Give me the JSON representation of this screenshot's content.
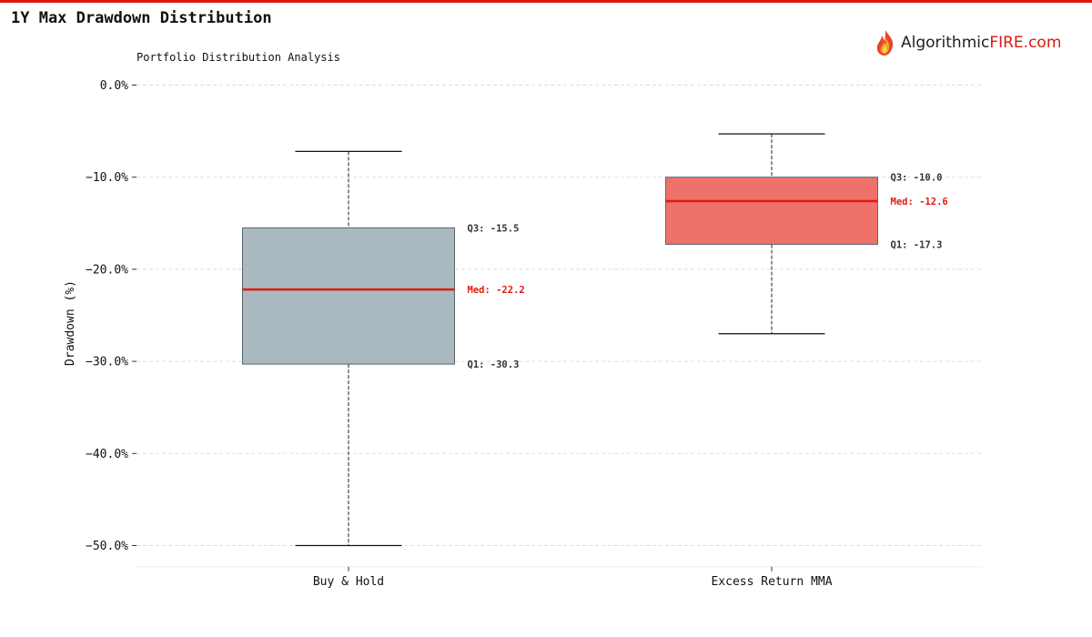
{
  "header": {
    "title": "1Y Max Drawdown Distribution",
    "logo_text_main": "Algorithmic",
    "logo_text_accent": "FIRE.com"
  },
  "colors": {
    "accent": "#d9190f",
    "buy_hold_box": "#aab8bf",
    "mma_box": "#ee716a",
    "median": "#e01b10",
    "grid": "#dddddd"
  },
  "chart_data": {
    "type": "box",
    "title": "Portfolio Distribution Analysis",
    "ylabel": "Drawdown (%)",
    "xlabel": "",
    "ylim": [
      -52.3,
      0
    ],
    "yticks": [
      "0.0%",
      "−10.0%",
      "−20.0%",
      "−30.0%",
      "−40.0%",
      "−50.0%"
    ],
    "ytick_values": [
      0,
      -10,
      -20,
      -30,
      -40,
      -50
    ],
    "grid": true,
    "categories": [
      "Buy & Hold",
      "Excess Return MMA"
    ],
    "boxes": [
      {
        "category": "Buy & Hold",
        "whisker_high": -7.2,
        "q3": -15.5,
        "median": -22.2,
        "q1": -30.3,
        "whisker_low": -50.0,
        "color": "#aab8bf",
        "labels": {
          "q3": "Q3: -15.5",
          "median": "Med: -22.2",
          "q1": "Q1: -30.3"
        }
      },
      {
        "category": "Excess Return MMA",
        "whisker_high": -5.3,
        "q3": -10.0,
        "median": -12.6,
        "q1": -17.3,
        "whisker_low": -27.0,
        "color": "#ee716a",
        "labels": {
          "q3": "Q3: -10.0",
          "median": "Med: -12.6",
          "q1": "Q1: -17.3"
        }
      }
    ]
  }
}
